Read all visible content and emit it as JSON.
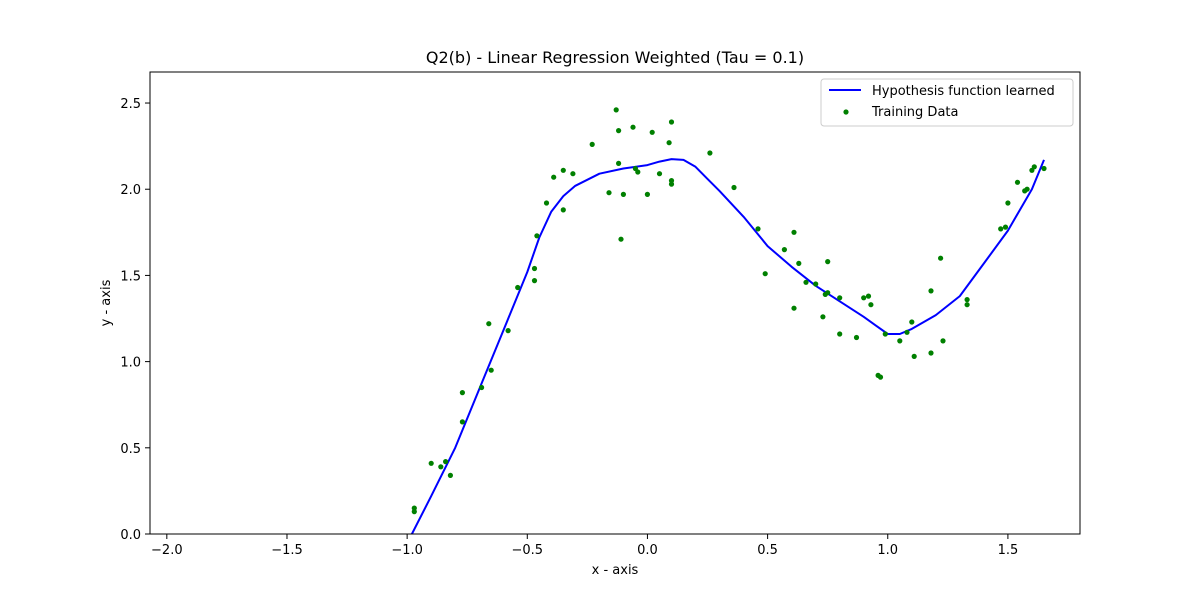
{
  "chart_data": {
    "type": "scatter",
    "title": "Q2(b) - Linear Regression Weighted (Tau = 0.1)",
    "xlabel": "x - axis",
    "ylabel": "y - axis",
    "xlim": [
      -2.07,
      1.8
    ],
    "ylim": [
      0.0,
      2.68
    ],
    "x_ticks": [
      -2.0,
      -1.5,
      -1.0,
      -0.5,
      0.0,
      0.5,
      1.0,
      1.5
    ],
    "x_tick_labels": [
      "−2.0",
      "−1.5",
      "−1.0",
      "−0.5",
      "0.0",
      "0.5",
      "1.0",
      "1.5"
    ],
    "y_ticks": [
      0.0,
      0.5,
      1.0,
      1.5,
      2.0,
      2.5
    ],
    "y_tick_labels": [
      "0.0",
      "0.5",
      "1.0",
      "1.5",
      "2.0",
      "2.5"
    ],
    "grid": false,
    "legend_position": "top-right",
    "colors": {
      "line": "#0000ff",
      "points": "#008000"
    },
    "series": [
      {
        "name": "Hypothesis function learned",
        "kind": "line",
        "x": [
          -0.98,
          -0.9,
          -0.8,
          -0.7,
          -0.6,
          -0.5,
          -0.45,
          -0.4,
          -0.35,
          -0.3,
          -0.2,
          -0.1,
          0.0,
          0.05,
          0.1,
          0.15,
          0.2,
          0.25,
          0.3,
          0.4,
          0.5,
          0.6,
          0.7,
          0.8,
          0.9,
          0.95,
          1.0,
          1.05,
          1.1,
          1.2,
          1.3,
          1.4,
          1.5,
          1.6,
          1.65
        ],
        "y": [
          0.0,
          0.22,
          0.5,
          0.84,
          1.18,
          1.52,
          1.72,
          1.87,
          1.96,
          2.02,
          2.09,
          2.12,
          2.14,
          2.16,
          2.175,
          2.17,
          2.13,
          2.06,
          1.99,
          1.84,
          1.67,
          1.55,
          1.44,
          1.35,
          1.26,
          1.21,
          1.16,
          1.16,
          1.19,
          1.27,
          1.38,
          1.57,
          1.76,
          2.0,
          2.17
        ]
      },
      {
        "name": "Training Data",
        "kind": "scatter",
        "x": [
          -0.97,
          -0.97,
          -0.9,
          -0.86,
          -0.84,
          -0.82,
          -0.77,
          -0.77,
          -0.69,
          -0.66,
          -0.65,
          -0.58,
          -0.54,
          -0.47,
          -0.47,
          -0.46,
          -0.42,
          -0.39,
          -0.35,
          -0.35,
          -0.31,
          -0.23,
          -0.16,
          -0.13,
          -0.12,
          -0.12,
          -0.11,
          -0.1,
          -0.06,
          -0.05,
          -0.04,
          0.0,
          0.02,
          0.05,
          0.09,
          0.1,
          0.1,
          0.1,
          0.26,
          0.36,
          0.46,
          0.49,
          0.57,
          0.61,
          0.61,
          0.63,
          0.66,
          0.7,
          0.73,
          0.74,
          0.75,
          0.75,
          0.8,
          0.8,
          0.87,
          0.9,
          0.92,
          0.93,
          0.96,
          0.97,
          0.99,
          1.05,
          1.08,
          1.1,
          1.11,
          1.18,
          1.18,
          1.22,
          1.23,
          1.33,
          1.33,
          1.47,
          1.49,
          1.5,
          1.54,
          1.57,
          1.58,
          1.6,
          1.61,
          1.65
        ],
        "y": [
          0.15,
          0.13,
          0.41,
          0.39,
          0.42,
          0.34,
          0.82,
          0.65,
          0.85,
          1.22,
          0.95,
          1.18,
          1.43,
          1.54,
          1.47,
          1.73,
          1.92,
          2.07,
          2.11,
          1.88,
          2.09,
          2.26,
          1.98,
          2.46,
          2.34,
          2.15,
          1.71,
          1.97,
          2.36,
          2.12,
          2.1,
          1.97,
          2.33,
          2.09,
          2.27,
          2.39,
          2.05,
          2.03,
          2.21,
          2.01,
          1.77,
          1.51,
          1.65,
          1.75,
          1.31,
          1.57,
          1.46,
          1.45,
          1.26,
          1.39,
          1.4,
          1.58,
          1.37,
          1.16,
          1.14,
          1.37,
          1.38,
          1.33,
          0.92,
          0.91,
          1.16,
          1.12,
          1.17,
          1.23,
          1.03,
          1.41,
          1.05,
          1.6,
          1.12,
          1.33,
          1.36,
          1.77,
          1.78,
          1.92,
          2.04,
          1.99,
          2.0,
          2.11,
          2.13,
          2.12
        ]
      }
    ]
  }
}
